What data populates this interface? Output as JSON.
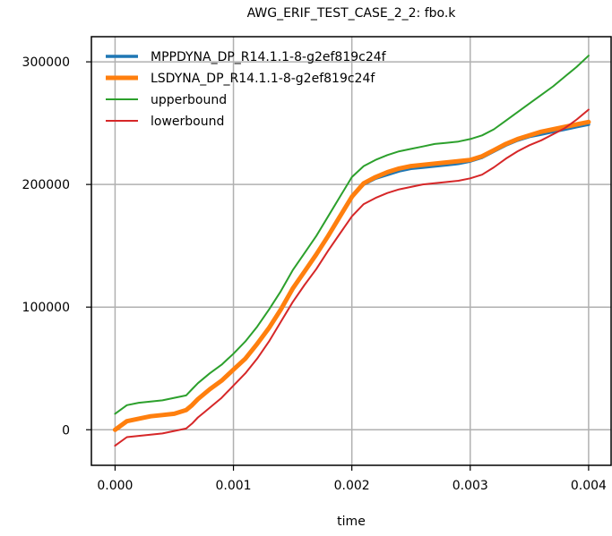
{
  "chart_data": {
    "type": "line",
    "title": "AWG_ERIF_TEST_CASE_2_2: fbo.k",
    "xlabel": "time",
    "ylabel": "",
    "xlim": [
      -0.0002,
      0.00419
    ],
    "ylim": [
      -29000,
      320500
    ],
    "xticks": [
      0.0,
      0.001,
      0.002,
      0.003,
      0.004
    ],
    "xtick_labels": [
      "0.000",
      "0.001",
      "0.002",
      "0.003",
      "0.004"
    ],
    "yticks": [
      0,
      100000,
      200000,
      300000
    ],
    "ytick_labels": [
      "0",
      "100000",
      "200000",
      "300000"
    ],
    "grid": true,
    "legend_position": "upper-left",
    "x": [
      0.0,
      0.0001,
      0.0002,
      0.0003,
      0.0004,
      0.0005,
      0.0006,
      0.00065,
      0.0007,
      0.00075,
      0.0008,
      0.0009,
      0.001,
      0.0011,
      0.0012,
      0.0013,
      0.0014,
      0.0015,
      0.0016,
      0.0017,
      0.0018,
      0.0019,
      0.002,
      0.0021,
      0.0022,
      0.0023,
      0.0024,
      0.0025,
      0.0026,
      0.0027,
      0.0028,
      0.0029,
      0.003,
      0.0031,
      0.0032,
      0.0033,
      0.0034,
      0.0035,
      0.0036,
      0.0037,
      0.0038,
      0.0039,
      0.004
    ],
    "series": [
      {
        "name": "MPPDYNA_DP_R14.1.1-8-g2ef819c24f",
        "color": "#1f77b4",
        "width": 3.5,
        "values": [
          0,
          7000,
          9000,
          11000,
          12000,
          13000,
          16000,
          20000,
          25000,
          29000,
          33000,
          40000,
          49000,
          58000,
          70000,
          83000,
          98000,
          115000,
          129000,
          143000,
          158000,
          174000,
          190000,
          200000,
          205000,
          208000,
          211000,
          213000,
          214000,
          215000,
          216000,
          217000,
          219000,
          222000,
          227000,
          232000,
          236000,
          239000,
          241000,
          243000,
          245000,
          247000,
          249000
        ]
      },
      {
        "name": "LSDYNA_DP_R14.1.1-8-g2ef819c24f",
        "color": "#ff7f0e",
        "width": 5,
        "values": [
          0,
          7000,
          9000,
          11000,
          12000,
          13000,
          16000,
          20000,
          25000,
          29000,
          33000,
          40000,
          49000,
          58000,
          70000,
          83000,
          98000,
          115000,
          129000,
          143000,
          158000,
          174000,
          190000,
          201000,
          206000,
          210000,
          213000,
          215000,
          216000,
          217000,
          218000,
          219000,
          220000,
          223000,
          228000,
          233000,
          237000,
          240000,
          243000,
          245000,
          247000,
          249000,
          251000
        ]
      },
      {
        "name": "upperbound",
        "color": "#2ca02c",
        "width": 2,
        "values": [
          13000,
          20000,
          22000,
          23000,
          24000,
          26000,
          28000,
          33000,
          38000,
          42000,
          46000,
          53000,
          62000,
          72000,
          84000,
          98000,
          113000,
          130000,
          144000,
          158000,
          174000,
          190000,
          206000,
          215000,
          220000,
          224000,
          227000,
          229000,
          231000,
          233000,
          234000,
          235000,
          237000,
          240000,
          245000,
          252000,
          259000,
          266000,
          273000,
          280000,
          288000,
          296000,
          305000
        ]
      },
      {
        "name": "lowerbound",
        "color": "#d62728",
        "width": 2,
        "values": [
          -13000,
          -6000,
          -5000,
          -4000,
          -3000,
          -1000,
          1000,
          5000,
          10000,
          14000,
          18000,
          26000,
          36000,
          46000,
          58000,
          72000,
          88000,
          104000,
          118000,
          131000,
          146000,
          160000,
          174000,
          184000,
          189000,
          193000,
          196000,
          198000,
          200000,
          201000,
          202000,
          203000,
          205000,
          208000,
          214000,
          221000,
          227000,
          232000,
          236000,
          241000,
          246000,
          253000,
          261000
        ]
      }
    ]
  }
}
